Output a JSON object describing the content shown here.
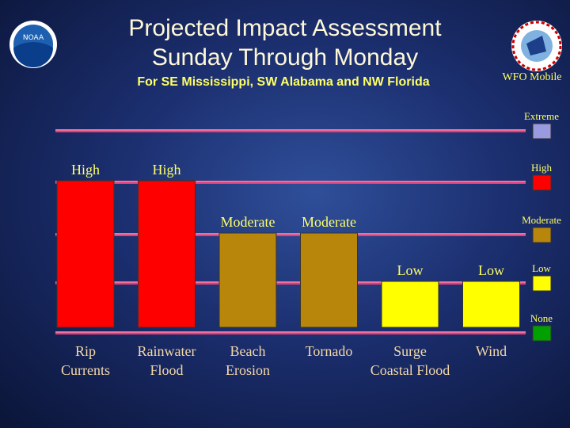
{
  "header": {
    "title_lines": [
      "Projected Impact Assessment",
      "Sunday Through Monday"
    ],
    "subtitle": "For SE Mississippi, SW Alabama and NW Florida",
    "office": "WFO Mobile"
  },
  "levels": [
    {
      "name": "Extreme",
      "color": "#9a9ae0"
    },
    {
      "name": "High",
      "color": "#ff0000"
    },
    {
      "name": "Moderate",
      "color": "#b8860b"
    },
    {
      "name": "Low",
      "color": "#ffff00"
    },
    {
      "name": "None",
      "color": "#00a000"
    }
  ],
  "impacts": [
    {
      "label": [
        "Rip",
        "Currents"
      ],
      "level": "High"
    },
    {
      "label": [
        "Rainwater",
        "Flood"
      ],
      "level": "High"
    },
    {
      "label": [
        "Beach",
        "Erosion"
      ],
      "level": "Moderate"
    },
    {
      "label": [
        "Tornado"
      ],
      "level": "Moderate"
    },
    {
      "label": [
        "Surge",
        "Coastal Flood"
      ],
      "level": "Low"
    },
    {
      "label": [
        "Wind"
      ],
      "level": "Low"
    }
  ]
}
